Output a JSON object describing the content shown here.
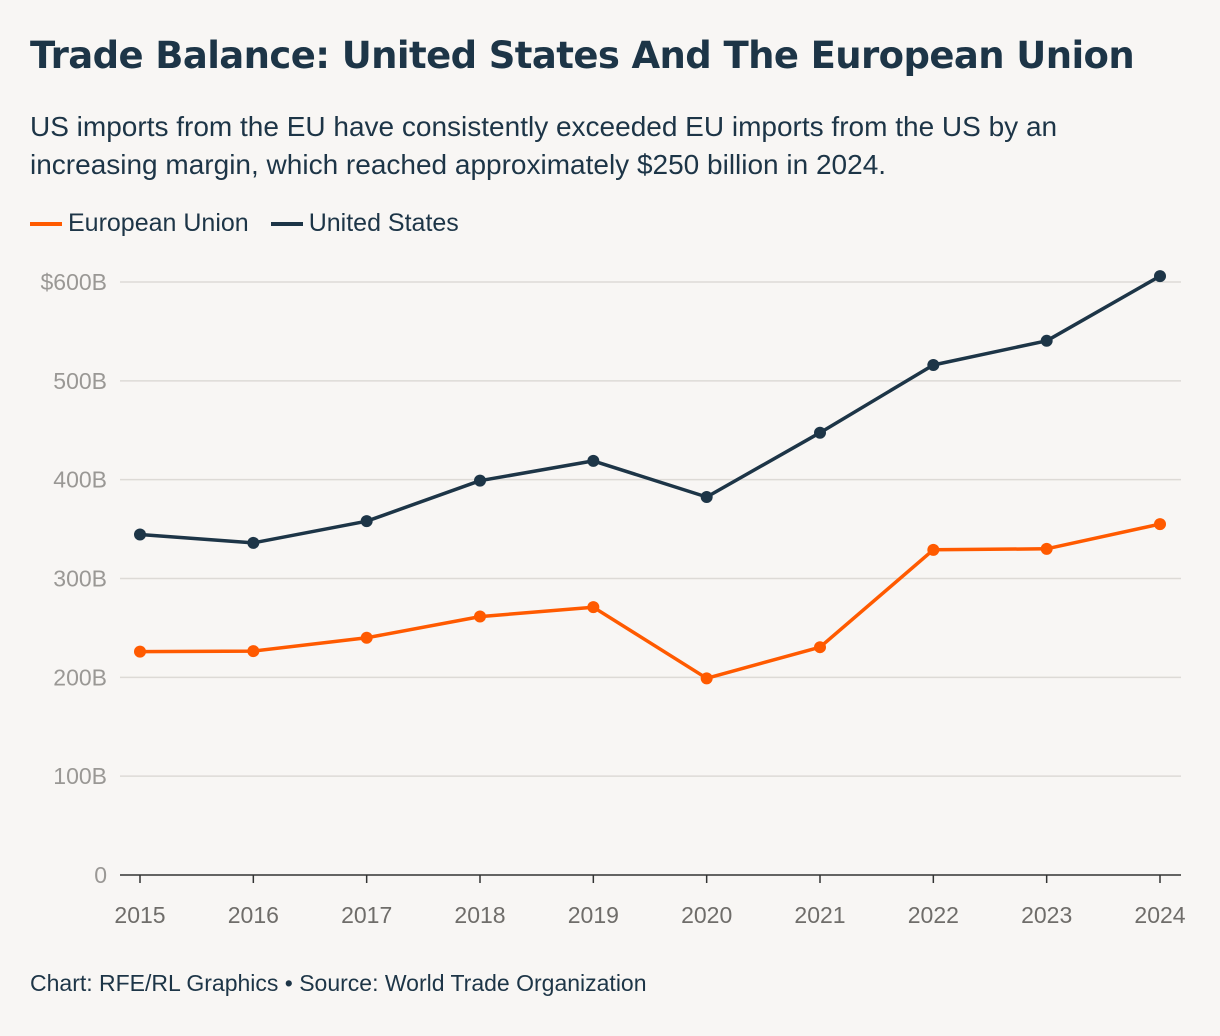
{
  "header": {
    "title": "Trade Balance: United States And The European Union",
    "subtitle": "US imports from the EU have consistently exceeded EU imports from the US by an increasing margin, which reached approximately $250 billion in 2024."
  },
  "legend": [
    {
      "label": "European Union",
      "color": "#ff5a00"
    },
    {
      "label": "United States",
      "color": "#1d3547"
    }
  ],
  "footer": {
    "credit": "Chart: RFE/RL Graphics • Source: World Trade Organization"
  },
  "chart_data": {
    "type": "line",
    "title": "Trade Balance: United States And The European Union",
    "xlabel": "",
    "ylabel": "",
    "x": [
      2015,
      2016,
      2017,
      2018,
      2019,
      2020,
      2021,
      2022,
      2023,
      2024
    ],
    "x_tick_labels": [
      "2015",
      "2016",
      "2017",
      "2018",
      "2019",
      "2020",
      "2021",
      "2022",
      "2023",
      "2024"
    ],
    "y_ticks": [
      0,
      100,
      200,
      300,
      400,
      500,
      600
    ],
    "y_tick_labels": [
      "0",
      "100B",
      "200B",
      "300B",
      "400B",
      "500B",
      "$600B"
    ],
    "ylim": [
      0,
      600
    ],
    "grid": true,
    "legend_position": "top-left",
    "series": [
      {
        "name": "European Union",
        "color": "#ff5a00",
        "values": [
          226,
          226.5,
          240,
          261.5,
          271,
          199,
          230.5,
          329,
          330,
          355
        ]
      },
      {
        "name": "United States",
        "color": "#1d3547",
        "values": [
          344.5,
          336,
          358,
          399,
          419,
          382.5,
          447.5,
          516,
          540.5,
          606
        ]
      }
    ]
  }
}
